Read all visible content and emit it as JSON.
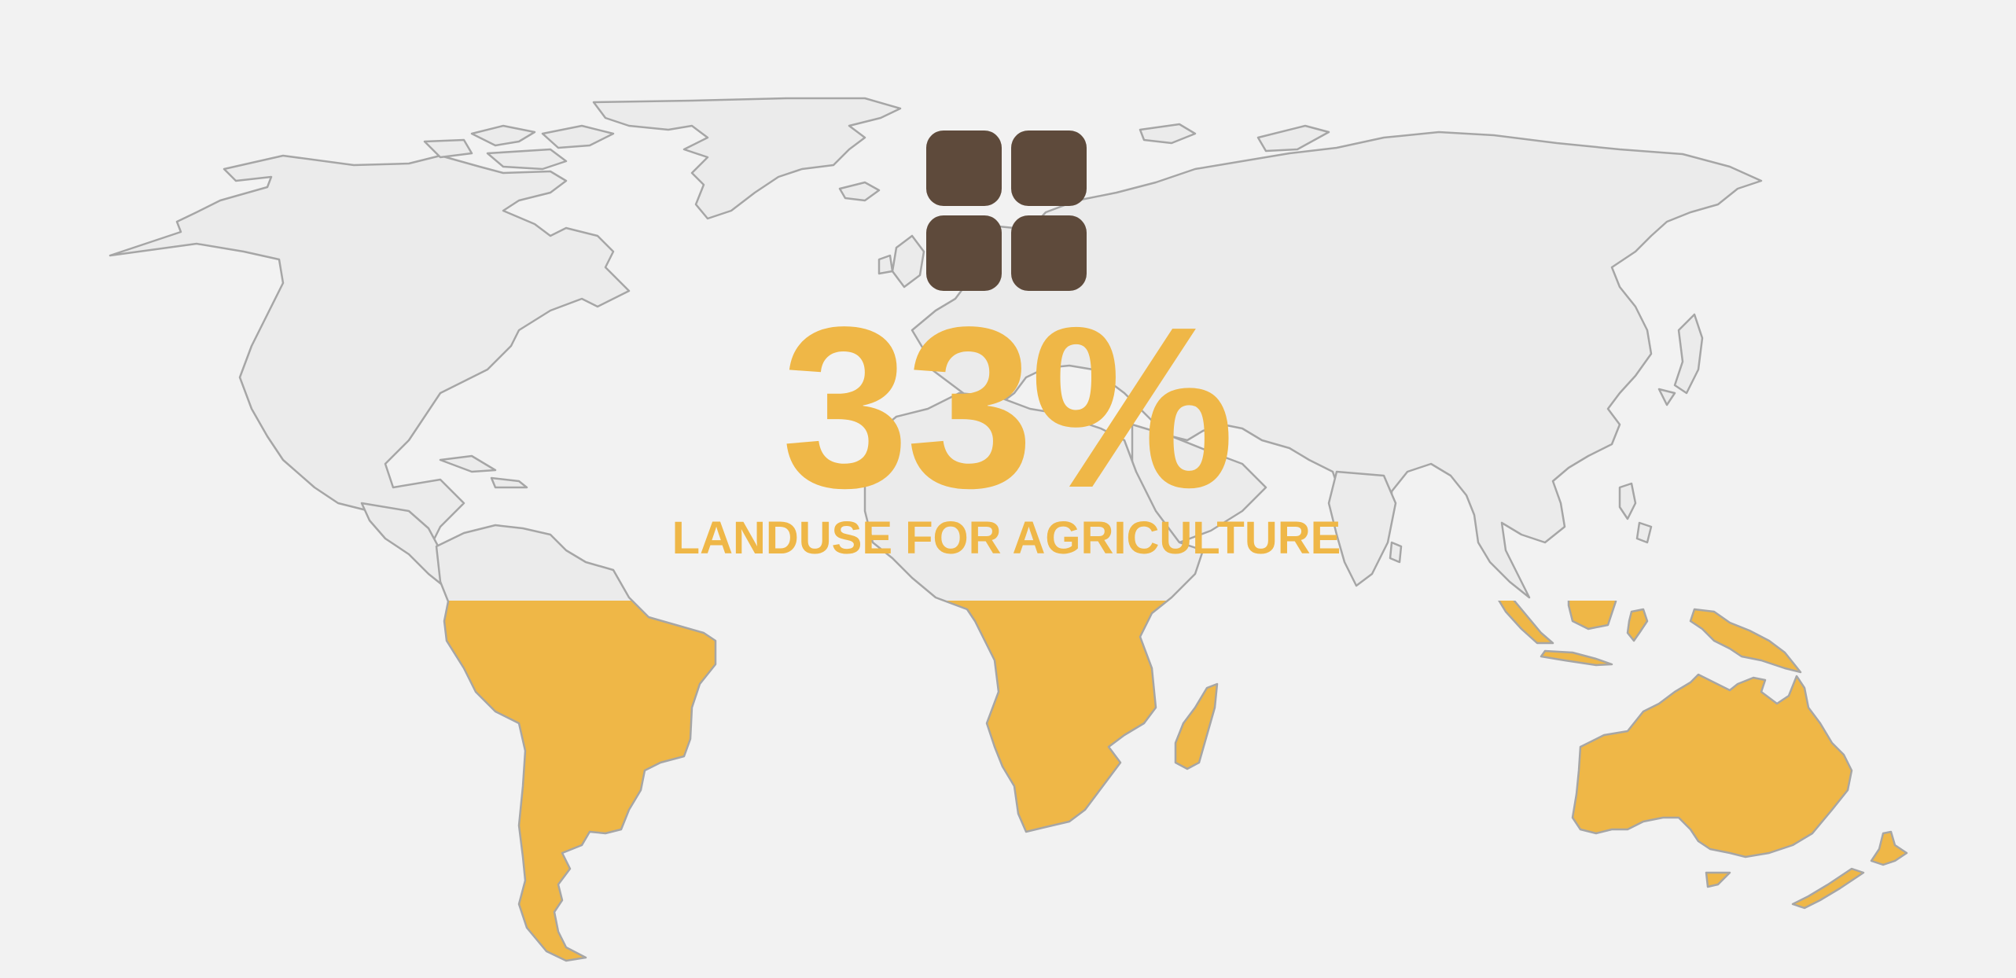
{
  "stat": {
    "value": "33%",
    "label": "LANDUSE FOR AGRICULTURE",
    "fraction": 0.33
  },
  "icon": "four-panel-tile-icon",
  "colors": {
    "background": "#f2f2f2",
    "land": "#ebebeb",
    "land_outline": "#a6a6a6",
    "highlight": "#efb747",
    "icon": "#5e4a3b"
  }
}
